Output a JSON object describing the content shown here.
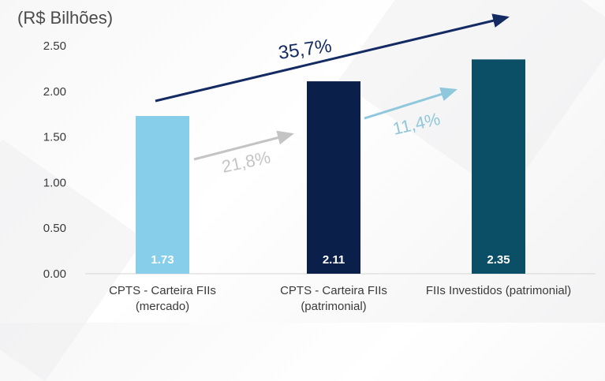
{
  "chart_data": {
    "type": "bar",
    "unit_label": "(R$ Bilhões)",
    "categories": [
      "CPTS - Carteira FIIs\n(mercado)",
      "CPTS - Carteira FIIs\n(patrimonial)",
      "FIIs Investidos (patrimonial)"
    ],
    "values": [
      1.73,
      2.11,
      2.35
    ],
    "value_labels": [
      "1.73",
      "2.11",
      "2.35"
    ],
    "colors": [
      "#87ceeb",
      "#0b1f4b",
      "#0b4f66"
    ],
    "ylim": [
      0,
      2.5
    ],
    "yticks": [
      "0.00",
      "0.50",
      "1.00",
      "1.50",
      "2.00",
      "2.50"
    ],
    "grid": false,
    "annotations": [
      {
        "text": "21,8%",
        "color": "#c4c4c4",
        "arrow_color": "#c4c4c4"
      },
      {
        "text": "11,4%",
        "color": "#8fc7dd",
        "arrow_color": "#8fc7dd"
      },
      {
        "text": "35,7%",
        "color": "#142a63",
        "arrow_color": "#142a63"
      }
    ]
  }
}
